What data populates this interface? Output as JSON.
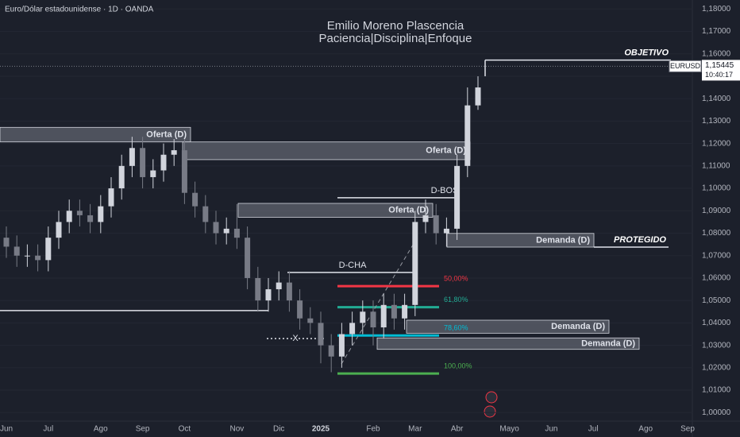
{
  "chart_data": {
    "type": "candlestick",
    "title": "Emilio Moreno Plascencia",
    "subtitle": "Paciencia|Disciplina|Enfoque",
    "symbol_title": "Euro/Dólar estadounidense · 1D · OANDA",
    "categories": [
      "Jun",
      null,
      null,
      null,
      "Jul",
      null,
      null,
      null,
      null,
      "Ago",
      null,
      null,
      null,
      "Sep",
      null,
      null,
      null,
      "Oct",
      null,
      null,
      null,
      null,
      "Nov",
      null,
      null,
      null,
      "Dic",
      null,
      null,
      null,
      "2025",
      null,
      null,
      null,
      null,
      "Feb",
      null,
      null,
      null,
      "Mar",
      null,
      null,
      null,
      "Abr",
      null,
      null,
      null,
      null,
      "Mayo",
      null,
      null,
      null,
      "Jun",
      null,
      null,
      null,
      "Jul",
      null,
      null,
      null,
      null,
      "Ago",
      null,
      null,
      null,
      "Sep",
      null
    ],
    "open": [
      1.078,
      1.074,
      1.07,
      1.07,
      1.068,
      1.078,
      1.085,
      1.09,
      1.088,
      1.085,
      1.092,
      1.1,
      1.11,
      1.118,
      1.105,
      1.108,
      1.115,
      1.117,
      1.098,
      1.092,
      1.085,
      1.08,
      1.082,
      1.078,
      1.06,
      1.05,
      1.055,
      1.058,
      1.05,
      1.042,
      1.04,
      1.03,
      1.025,
      1.035,
      1.04,
      1.045,
      1.038,
      1.048,
      1.042,
      1.048,
      1.085,
      1.088,
      1.08,
      1.082,
      1.11,
      1.137,
      null,
      null,
      null,
      null,
      null,
      null,
      null,
      null,
      null,
      null,
      null,
      null,
      null,
      null,
      null,
      null,
      null,
      null,
      null,
      null,
      null
    ],
    "high": [
      1.083,
      1.079,
      1.075,
      1.075,
      1.083,
      1.09,
      1.095,
      1.095,
      1.093,
      1.097,
      1.105,
      1.115,
      1.123,
      1.123,
      1.113,
      1.12,
      1.122,
      1.122,
      1.103,
      1.097,
      1.09,
      1.087,
      1.093,
      1.083,
      1.065,
      1.06,
      1.063,
      1.063,
      1.055,
      1.047,
      1.045,
      1.035,
      1.04,
      1.045,
      1.05,
      1.05,
      1.053,
      1.053,
      1.053,
      1.09,
      1.095,
      1.093,
      1.087,
      1.115,
      1.145,
      1.15,
      null,
      null,
      null,
      null,
      null,
      null,
      null,
      null,
      null,
      null,
      null,
      null,
      null,
      null,
      null,
      null,
      null,
      null,
      null,
      null,
      null
    ],
    "low": [
      1.069,
      1.065,
      1.065,
      1.063,
      1.063,
      1.073,
      1.08,
      1.083,
      1.08,
      1.08,
      1.087,
      1.095,
      1.105,
      1.1,
      1.1,
      1.103,
      1.11,
      1.093,
      1.087,
      1.08,
      1.075,
      1.075,
      1.073,
      1.055,
      1.045,
      1.045,
      1.05,
      1.045,
      1.037,
      1.035,
      1.022,
      1.018,
      1.02,
      1.03,
      1.035,
      1.03,
      1.033,
      1.037,
      1.037,
      1.043,
      1.08,
      1.075,
      1.074,
      1.077,
      1.105,
      1.135,
      null,
      null,
      null,
      null,
      null,
      null,
      null,
      null,
      null,
      null,
      null,
      null,
      null,
      null,
      null,
      null,
      null,
      null,
      null,
      null,
      null
    ],
    "close": [
      1.074,
      1.07,
      1.07,
      1.068,
      1.078,
      1.085,
      1.09,
      1.088,
      1.085,
      1.092,
      1.1,
      1.11,
      1.118,
      1.105,
      1.108,
      1.115,
      1.117,
      1.098,
      1.092,
      1.085,
      1.08,
      1.082,
      1.078,
      1.06,
      1.05,
      1.055,
      1.058,
      1.05,
      1.042,
      1.04,
      1.03,
      1.025,
      1.035,
      1.04,
      1.045,
      1.038,
      1.048,
      1.042,
      1.048,
      1.085,
      1.088,
      1.08,
      1.082,
      1.11,
      1.137,
      1.145,
      null,
      null,
      null,
      null,
      null,
      null,
      null,
      null,
      null,
      null,
      null,
      null,
      null,
      null,
      null,
      null,
      null,
      null,
      null,
      null,
      null
    ],
    "up_color": "#d1d4dc",
    "down_color": "#787b86",
    "ylim": [
      0.9962,
      1.184
    ],
    "yticks": [
      {
        "value": 1.0,
        "label": "1,00000"
      },
      {
        "value": 1.01,
        "label": "1,01000"
      },
      {
        "value": 1.02,
        "label": "1,02000"
      },
      {
        "value": 1.03,
        "label": "1,03000"
      },
      {
        "value": 1.04,
        "label": "1,04000"
      },
      {
        "value": 1.05,
        "label": "1,05000"
      },
      {
        "value": 1.06,
        "label": "1,06000"
      },
      {
        "value": 1.07,
        "label": "1,07000"
      },
      {
        "value": 1.08,
        "label": "1,08000"
      },
      {
        "value": 1.09,
        "label": "1,09000"
      },
      {
        "value": 1.1,
        "label": "1,10000"
      },
      {
        "value": 1.11,
        "label": "1,11000"
      },
      {
        "value": 1.12,
        "label": "1,12000"
      },
      {
        "value": 1.13,
        "label": "1,13000"
      },
      {
        "value": 1.14,
        "label": "1,14000"
      },
      {
        "value": 1.15,
        "label": "1,15000"
      },
      {
        "value": 1.16,
        "label": "1,16000"
      },
      {
        "value": 1.17,
        "label": "1,17000"
      },
      {
        "value": 1.18,
        "label": "1,18000"
      }
    ],
    "zones": [
      {
        "label": "Oferta (D)",
        "top": 1.1272,
        "bottom": 1.1207
      },
      {
        "label": "Oferta (D)",
        "top": 1.1207,
        "bottom": 1.1128
      },
      {
        "label": "Oferta (D)",
        "top": 1.0933,
        "bottom": 1.0871
      },
      {
        "label": "Demanda (D)",
        "top": 1.0799,
        "bottom": 1.0738
      },
      {
        "label": "Demanda (D)",
        "top": 1.0412,
        "bottom": 1.0354
      },
      {
        "label": "Demanda (D)",
        "top": 1.0333,
        "bottom": 1.0282
      }
    ],
    "fib_levels": [
      {
        "label": "50,00%",
        "price": 1.0564,
        "color": "#f23645"
      },
      {
        "label": "61,80%",
        "price": 1.047,
        "color": "#22ab94"
      },
      {
        "label": "78,60%",
        "price": 1.0344,
        "color": "#00bcd4"
      },
      {
        "label": "100,00%",
        "price": 1.0174,
        "color": "#4caf50"
      }
    ],
    "levels": [
      {
        "label": "D-BOS",
        "price": 1.0958
      },
      {
        "label": "D-CHA",
        "price": 1.0625
      },
      {
        "label": "X",
        "price": 1.033
      },
      {
        "label": "OBJETIVO",
        "price": 1.1572
      },
      {
        "label": "PROTEGIDO",
        "price": 1.0738
      }
    ],
    "support_line": 1.0455,
    "last_price": {
      "value": 1.15445,
      "label": "1,15445"
    },
    "symbol": "EURUSD",
    "countdown": "10:40:17"
  }
}
